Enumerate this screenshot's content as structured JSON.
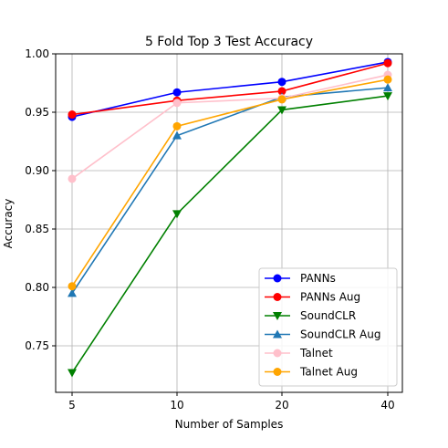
{
  "chart_data": {
    "type": "line",
    "title": "5 Fold Top 3 Test Accuracy",
    "xlabel": "Number of Samples",
    "ylabel": "Accuracy",
    "categories": [
      "5",
      "10",
      "20",
      "40"
    ],
    "ylim": [
      0.71,
      1.0
    ],
    "yticks": [
      "0.75",
      "0.80",
      "0.85",
      "0.90",
      "0.95",
      "1.00"
    ],
    "grid": true,
    "legend_position": "lower-right",
    "series": [
      {
        "name": "PANNs",
        "color": "#0000ff",
        "marker": "circle",
        "values": [
          0.946,
          0.967,
          0.976,
          0.993
        ]
      },
      {
        "name": "PANNs Aug",
        "color": "#ff0000",
        "marker": "circle",
        "values": [
          0.948,
          0.96,
          0.968,
          0.992
        ]
      },
      {
        "name": "SoundCLR",
        "color": "#008000",
        "marker": "triangle-down",
        "values": [
          0.727,
          0.863,
          0.952,
          0.964
        ]
      },
      {
        "name": "SoundCLR Aug",
        "color": "#1f77b4",
        "marker": "triangle-up",
        "values": [
          0.795,
          0.93,
          0.963,
          0.971
        ]
      },
      {
        "name": "Talnet",
        "color": "#ffc0cb",
        "marker": "circle",
        "values": [
          0.893,
          0.958,
          0.962,
          0.982
        ]
      },
      {
        "name": "Talnet Aug",
        "color": "#ffa500",
        "marker": "circle",
        "values": [
          0.801,
          0.938,
          0.961,
          0.978
        ]
      }
    ]
  }
}
